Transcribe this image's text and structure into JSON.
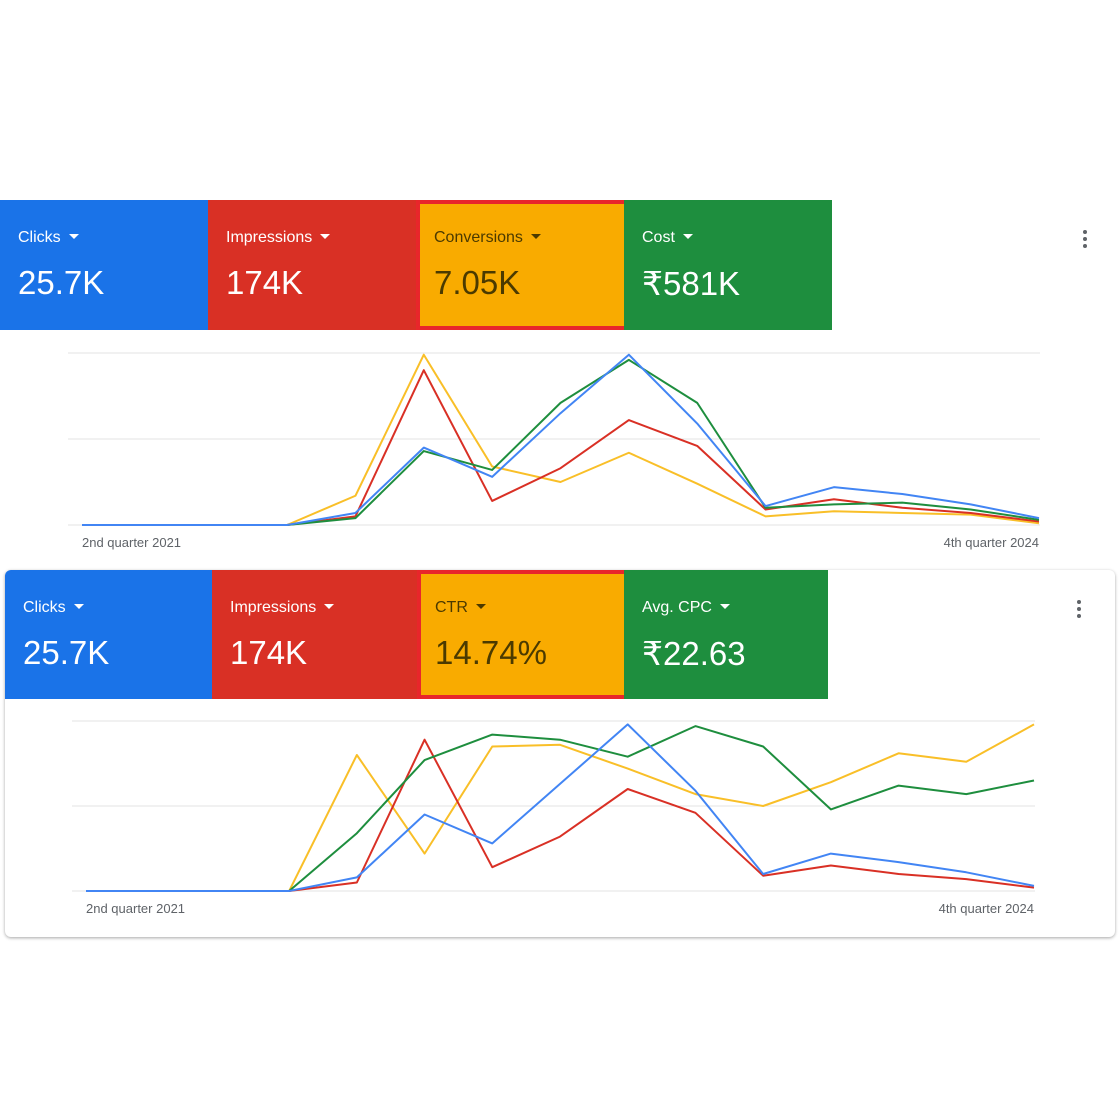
{
  "panels": [
    {
      "tiles": [
        {
          "label": "Clicks",
          "value": "25.7K",
          "color": "#1a73e8",
          "text": "light",
          "outlined": false
        },
        {
          "label": "Impressions",
          "value": "174K",
          "color": "#d93025",
          "text": "light",
          "outlined": false
        },
        {
          "label": "Conversions",
          "value": "7.05K",
          "color": "#f9ab00",
          "text": "dark",
          "outlined": true
        },
        {
          "label": "Cost",
          "value": "₹581K",
          "color": "#1e8e3e",
          "text": "light",
          "outlined": false
        }
      ],
      "chart_data": {
        "type": "line",
        "x_labels": [
          "2nd quarter 2021",
          "4th quarter 2024"
        ],
        "points": 15,
        "ylim": [
          0,
          100
        ],
        "grid": true,
        "series": [
          {
            "color": "#f9bf28",
            "values": [
              0,
              0,
              0,
              0,
              17,
              99,
              34,
              25,
              42,
              24,
              5,
              8,
              7,
              6,
              1
            ]
          },
          {
            "color": "#d93025",
            "values": [
              0,
              0,
              0,
              0,
              5,
              90,
              14,
              33,
              61,
              46,
              9,
              15,
              10,
              7,
              2
            ]
          },
          {
            "color": "#1e8e3e",
            "values": [
              0,
              0,
              0,
              0,
              4,
              43,
              32,
              71,
              96,
              71,
              10,
              12,
              13,
              9,
              3
            ]
          },
          {
            "color": "#4285f4",
            "values": [
              0,
              0,
              0,
              0,
              7,
              45,
              28,
              65,
              99,
              59,
              11,
              22,
              18,
              12,
              4
            ]
          }
        ]
      }
    },
    {
      "tiles": [
        {
          "label": "Clicks",
          "value": "25.7K",
          "color": "#1a73e8",
          "text": "light",
          "outlined": false
        },
        {
          "label": "Impressions",
          "value": "174K",
          "color": "#d93025",
          "text": "light",
          "outlined": false
        },
        {
          "label": "CTR",
          "value": "14.74%",
          "color": "#f9ab00",
          "text": "dark",
          "outlined": true
        },
        {
          "label": "Avg. CPC",
          "value": "₹22.63",
          "color": "#1e8e3e",
          "text": "light",
          "outlined": false
        }
      ],
      "chart_data": {
        "type": "line",
        "x_labels": [
          "2nd quarter 2021",
          "4th quarter 2024"
        ],
        "points": 15,
        "ylim": [
          0,
          100
        ],
        "grid": true,
        "series": [
          {
            "color": "#f9bf28",
            "values": [
              0,
              0,
              0,
              0,
              80,
              22,
              85,
              86,
              72,
              57,
              50,
              64,
              81,
              76,
              98
            ]
          },
          {
            "color": "#d93025",
            "values": [
              0,
              0,
              0,
              0,
              5,
              89,
              14,
              32,
              60,
              46,
              9,
              15,
              10,
              7,
              2
            ]
          },
          {
            "color": "#1e8e3e",
            "values": [
              0,
              0,
              0,
              0,
              34,
              77,
              92,
              89,
              79,
              97,
              85,
              48,
              62,
              57,
              65
            ]
          },
          {
            "color": "#4285f4",
            "values": [
              0,
              0,
              0,
              0,
              8,
              45,
              28,
              63,
              98,
              59,
              10,
              22,
              17,
              11,
              3
            ]
          }
        ]
      }
    }
  ],
  "menu_icon": "more-vert-icon"
}
